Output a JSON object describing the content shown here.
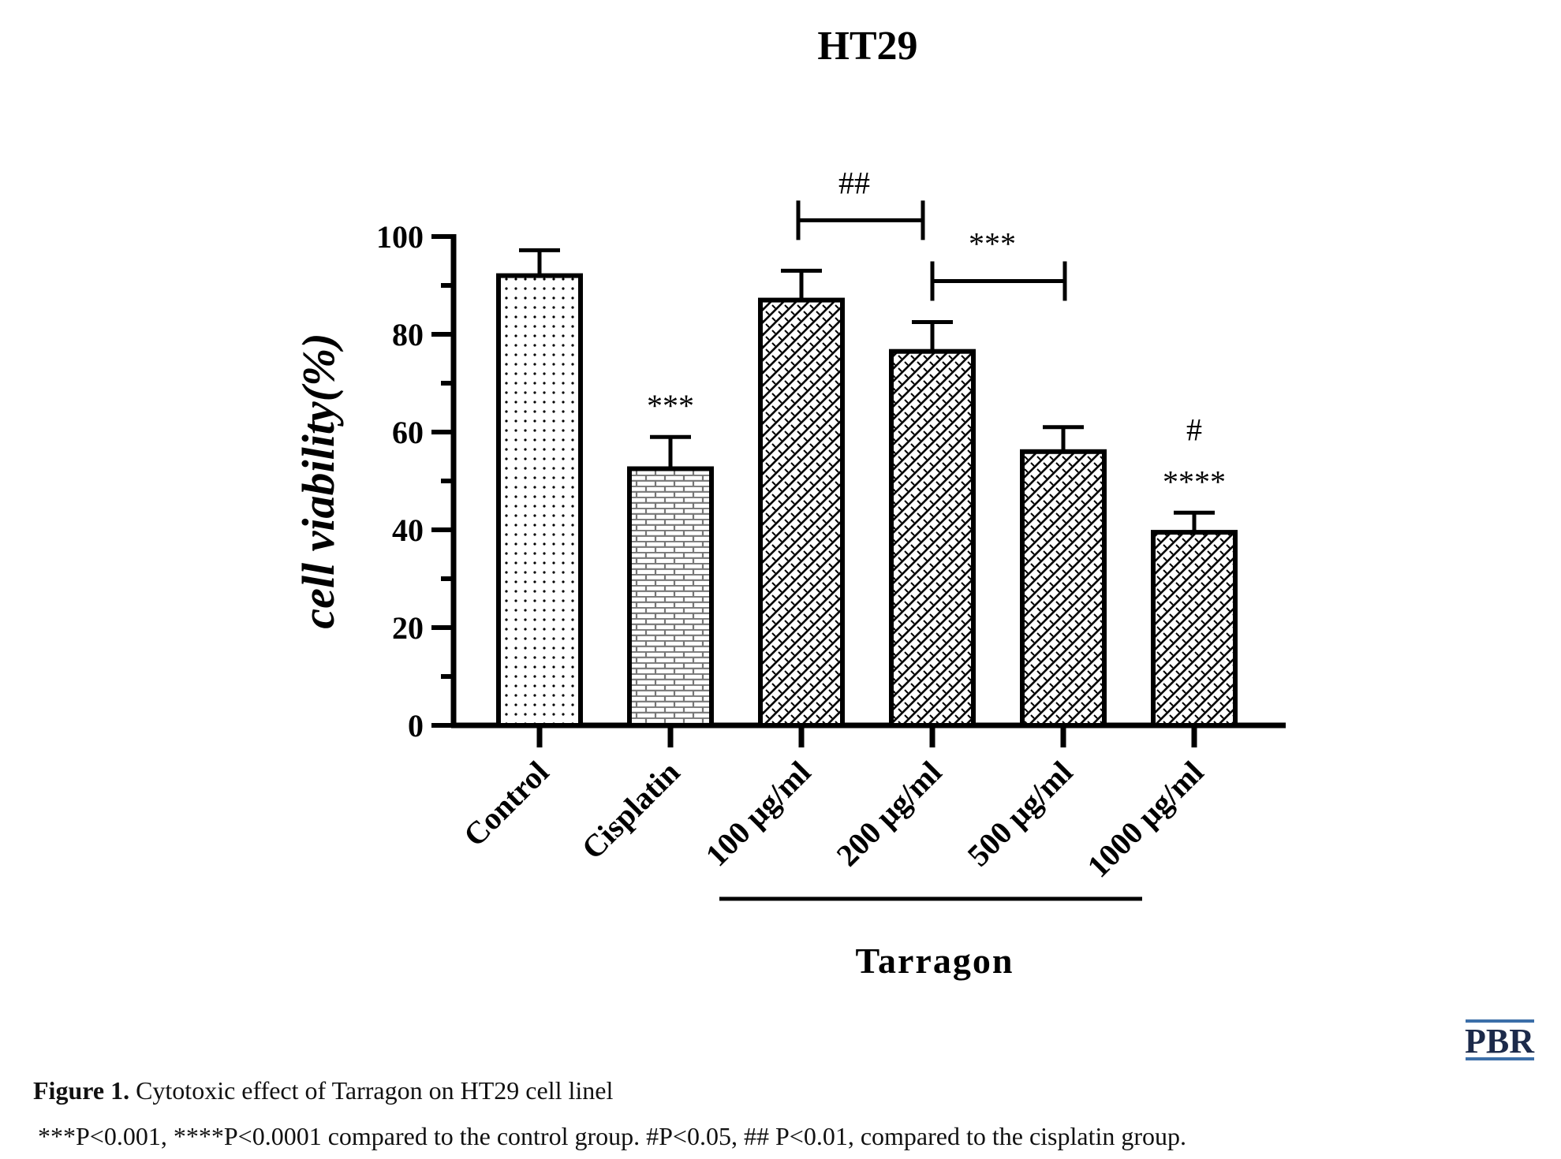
{
  "chart_data": {
    "type": "bar",
    "title": "HT29",
    "ylabel": "cell viability(%)",
    "ylim": [
      0,
      100
    ],
    "yticks": [
      0,
      20,
      40,
      60,
      80,
      100
    ],
    "categories": [
      "Control",
      "Cisplatin",
      "100 μg/ml",
      "200 μg/ml",
      "500 μg/ml",
      "1000 μg/ml"
    ],
    "values": [
      92,
      52.5,
      87,
      76.5,
      56,
      39.5
    ],
    "errors": [
      5.2,
      6.5,
      6,
      6,
      5,
      4
    ],
    "patterns": [
      "dots",
      "bricks",
      "crosshatch",
      "crosshatch",
      "crosshatch",
      "crosshatch"
    ],
    "annotations": [
      {
        "text": "***",
        "category": "Cisplatin"
      },
      {
        "text": "****",
        "category": "1000 μg/ml"
      },
      {
        "text": "#",
        "category": "1000 μg/ml"
      }
    ],
    "brackets": [
      {
        "text": "##",
        "from": "100 μg/ml",
        "to": "200 μg/ml"
      },
      {
        "text": "***",
        "from": "200 μg/ml",
        "to": "500 μg/ml"
      }
    ],
    "group_label": "Tarragon",
    "group_from": "100 μg/ml",
    "group_to": "1000 μg/ml",
    "grid": false
  },
  "logo": "PBR",
  "caption": {
    "figure_label": "Figure 1.",
    "figure_text": " Cytotoxic effect of Tarragon on HT29 cell linel",
    "note": "***P<0.001, ****P<0.0001 compared to the control group. #P<0.05, ## P<0.01, compared to the cisplatin group."
  }
}
